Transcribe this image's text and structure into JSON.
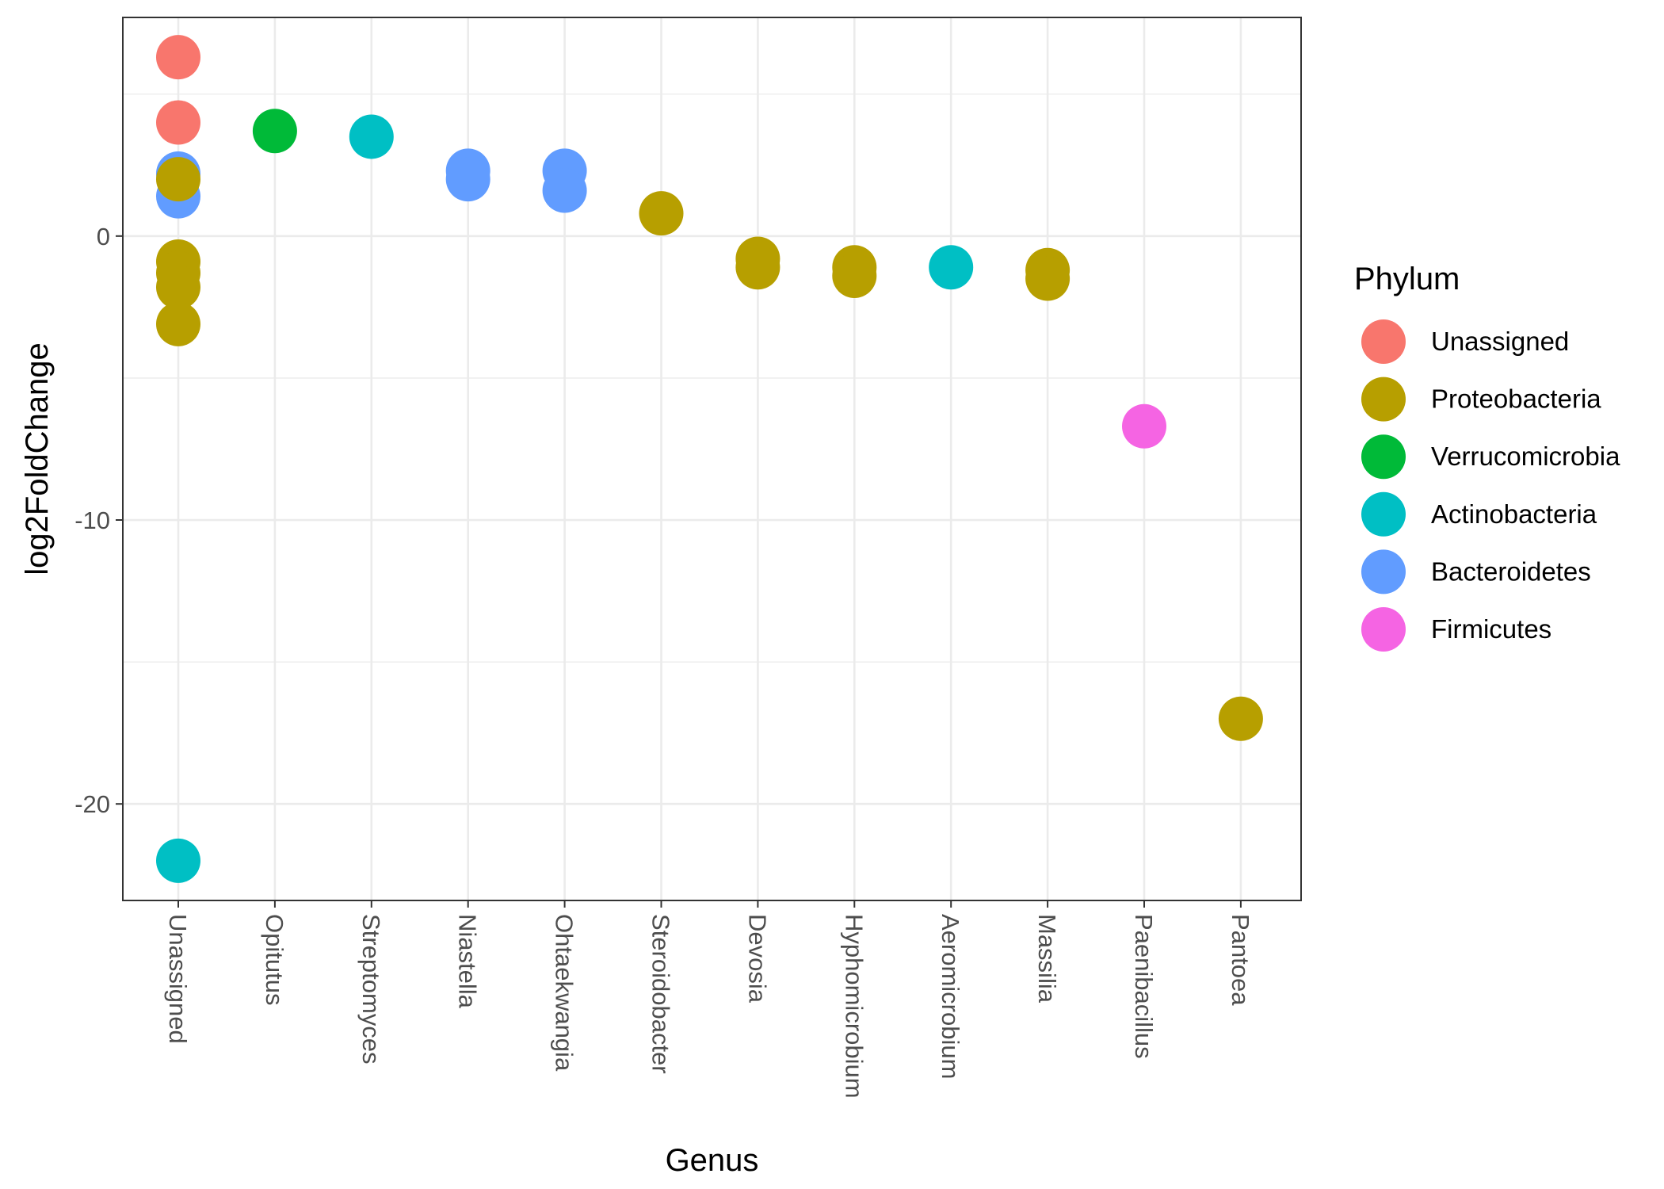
{
  "chart_data": {
    "type": "scatter",
    "xlabel": "Genus",
    "ylabel": "log2FoldChange",
    "categories": [
      "Unassigned",
      "Opitutus",
      "Streptomyces",
      "Niastella",
      "Ohtaekwangia",
      "Steroidobacter",
      "Devosia",
      "Hyphomicrobium",
      "Aeromicrobium",
      "Massilia",
      "Paenibacillus",
      "Pantoea"
    ],
    "ylim": [
      -23.4,
      7.7
    ],
    "yticks": [
      0,
      -10,
      -20
    ],
    "ytick_labels": [
      "0",
      "-10",
      "-20"
    ],
    "grid": true,
    "legend": {
      "title": "Phylum",
      "position": "right",
      "entries": [
        {
          "label": "Unassigned",
          "color": "#F8766D"
        },
        {
          "label": "Proteobacteria",
          "color": "#B79F00"
        },
        {
          "label": "Verrucomicrobia",
          "color": "#00BA38"
        },
        {
          "label": "Actinobacteria",
          "color": "#00BFC4"
        },
        {
          "label": "Bacteroidetes",
          "color": "#619CFF"
        },
        {
          "label": "Firmicutes",
          "color": "#F564E3"
        }
      ]
    },
    "points": [
      {
        "genus": "Unassigned",
        "phylum": "Unassigned",
        "y": 6.3
      },
      {
        "genus": "Unassigned",
        "phylum": "Unassigned",
        "y": 4.0
      },
      {
        "genus": "Unassigned",
        "phylum": "Bacteroidetes",
        "y": 2.2
      },
      {
        "genus": "Unassigned",
        "phylum": "Bacteroidetes",
        "y": 1.4
      },
      {
        "genus": "Unassigned",
        "phylum": "Proteobacteria",
        "y": 2.0
      },
      {
        "genus": "Unassigned",
        "phylum": "Proteobacteria",
        "y": -0.9
      },
      {
        "genus": "Unassigned",
        "phylum": "Proteobacteria",
        "y": -1.3
      },
      {
        "genus": "Unassigned",
        "phylum": "Proteobacteria",
        "y": -1.8
      },
      {
        "genus": "Unassigned",
        "phylum": "Proteobacteria",
        "y": -3.1
      },
      {
        "genus": "Unassigned",
        "phylum": "Actinobacteria",
        "y": -22.0
      },
      {
        "genus": "Opitutus",
        "phylum": "Verrucomicrobia",
        "y": 3.7
      },
      {
        "genus": "Streptomyces",
        "phylum": "Actinobacteria",
        "y": 3.5
      },
      {
        "genus": "Niastella",
        "phylum": "Bacteroidetes",
        "y": 2.3
      },
      {
        "genus": "Niastella",
        "phylum": "Bacteroidetes",
        "y": 2.0
      },
      {
        "genus": "Ohtaekwangia",
        "phylum": "Bacteroidetes",
        "y": 2.3
      },
      {
        "genus": "Ohtaekwangia",
        "phylum": "Bacteroidetes",
        "y": 1.6
      },
      {
        "genus": "Steroidobacter",
        "phylum": "Proteobacteria",
        "y": 0.8
      },
      {
        "genus": "Devosia",
        "phylum": "Proteobacteria",
        "y": -0.8
      },
      {
        "genus": "Devosia",
        "phylum": "Proteobacteria",
        "y": -1.1
      },
      {
        "genus": "Hyphomicrobium",
        "phylum": "Proteobacteria",
        "y": -1.1
      },
      {
        "genus": "Hyphomicrobium",
        "phylum": "Proteobacteria",
        "y": -1.4
      },
      {
        "genus": "Aeromicrobium",
        "phylum": "Actinobacteria",
        "y": -1.1
      },
      {
        "genus": "Massilia",
        "phylum": "Proteobacteria",
        "y": -1.2
      },
      {
        "genus": "Massilia",
        "phylum": "Proteobacteria",
        "y": -1.5
      },
      {
        "genus": "Paenibacillus",
        "phylum": "Firmicutes",
        "y": -6.7
      },
      {
        "genus": "Pantoea",
        "phylum": "Proteobacteria",
        "y": -17.0
      }
    ]
  }
}
